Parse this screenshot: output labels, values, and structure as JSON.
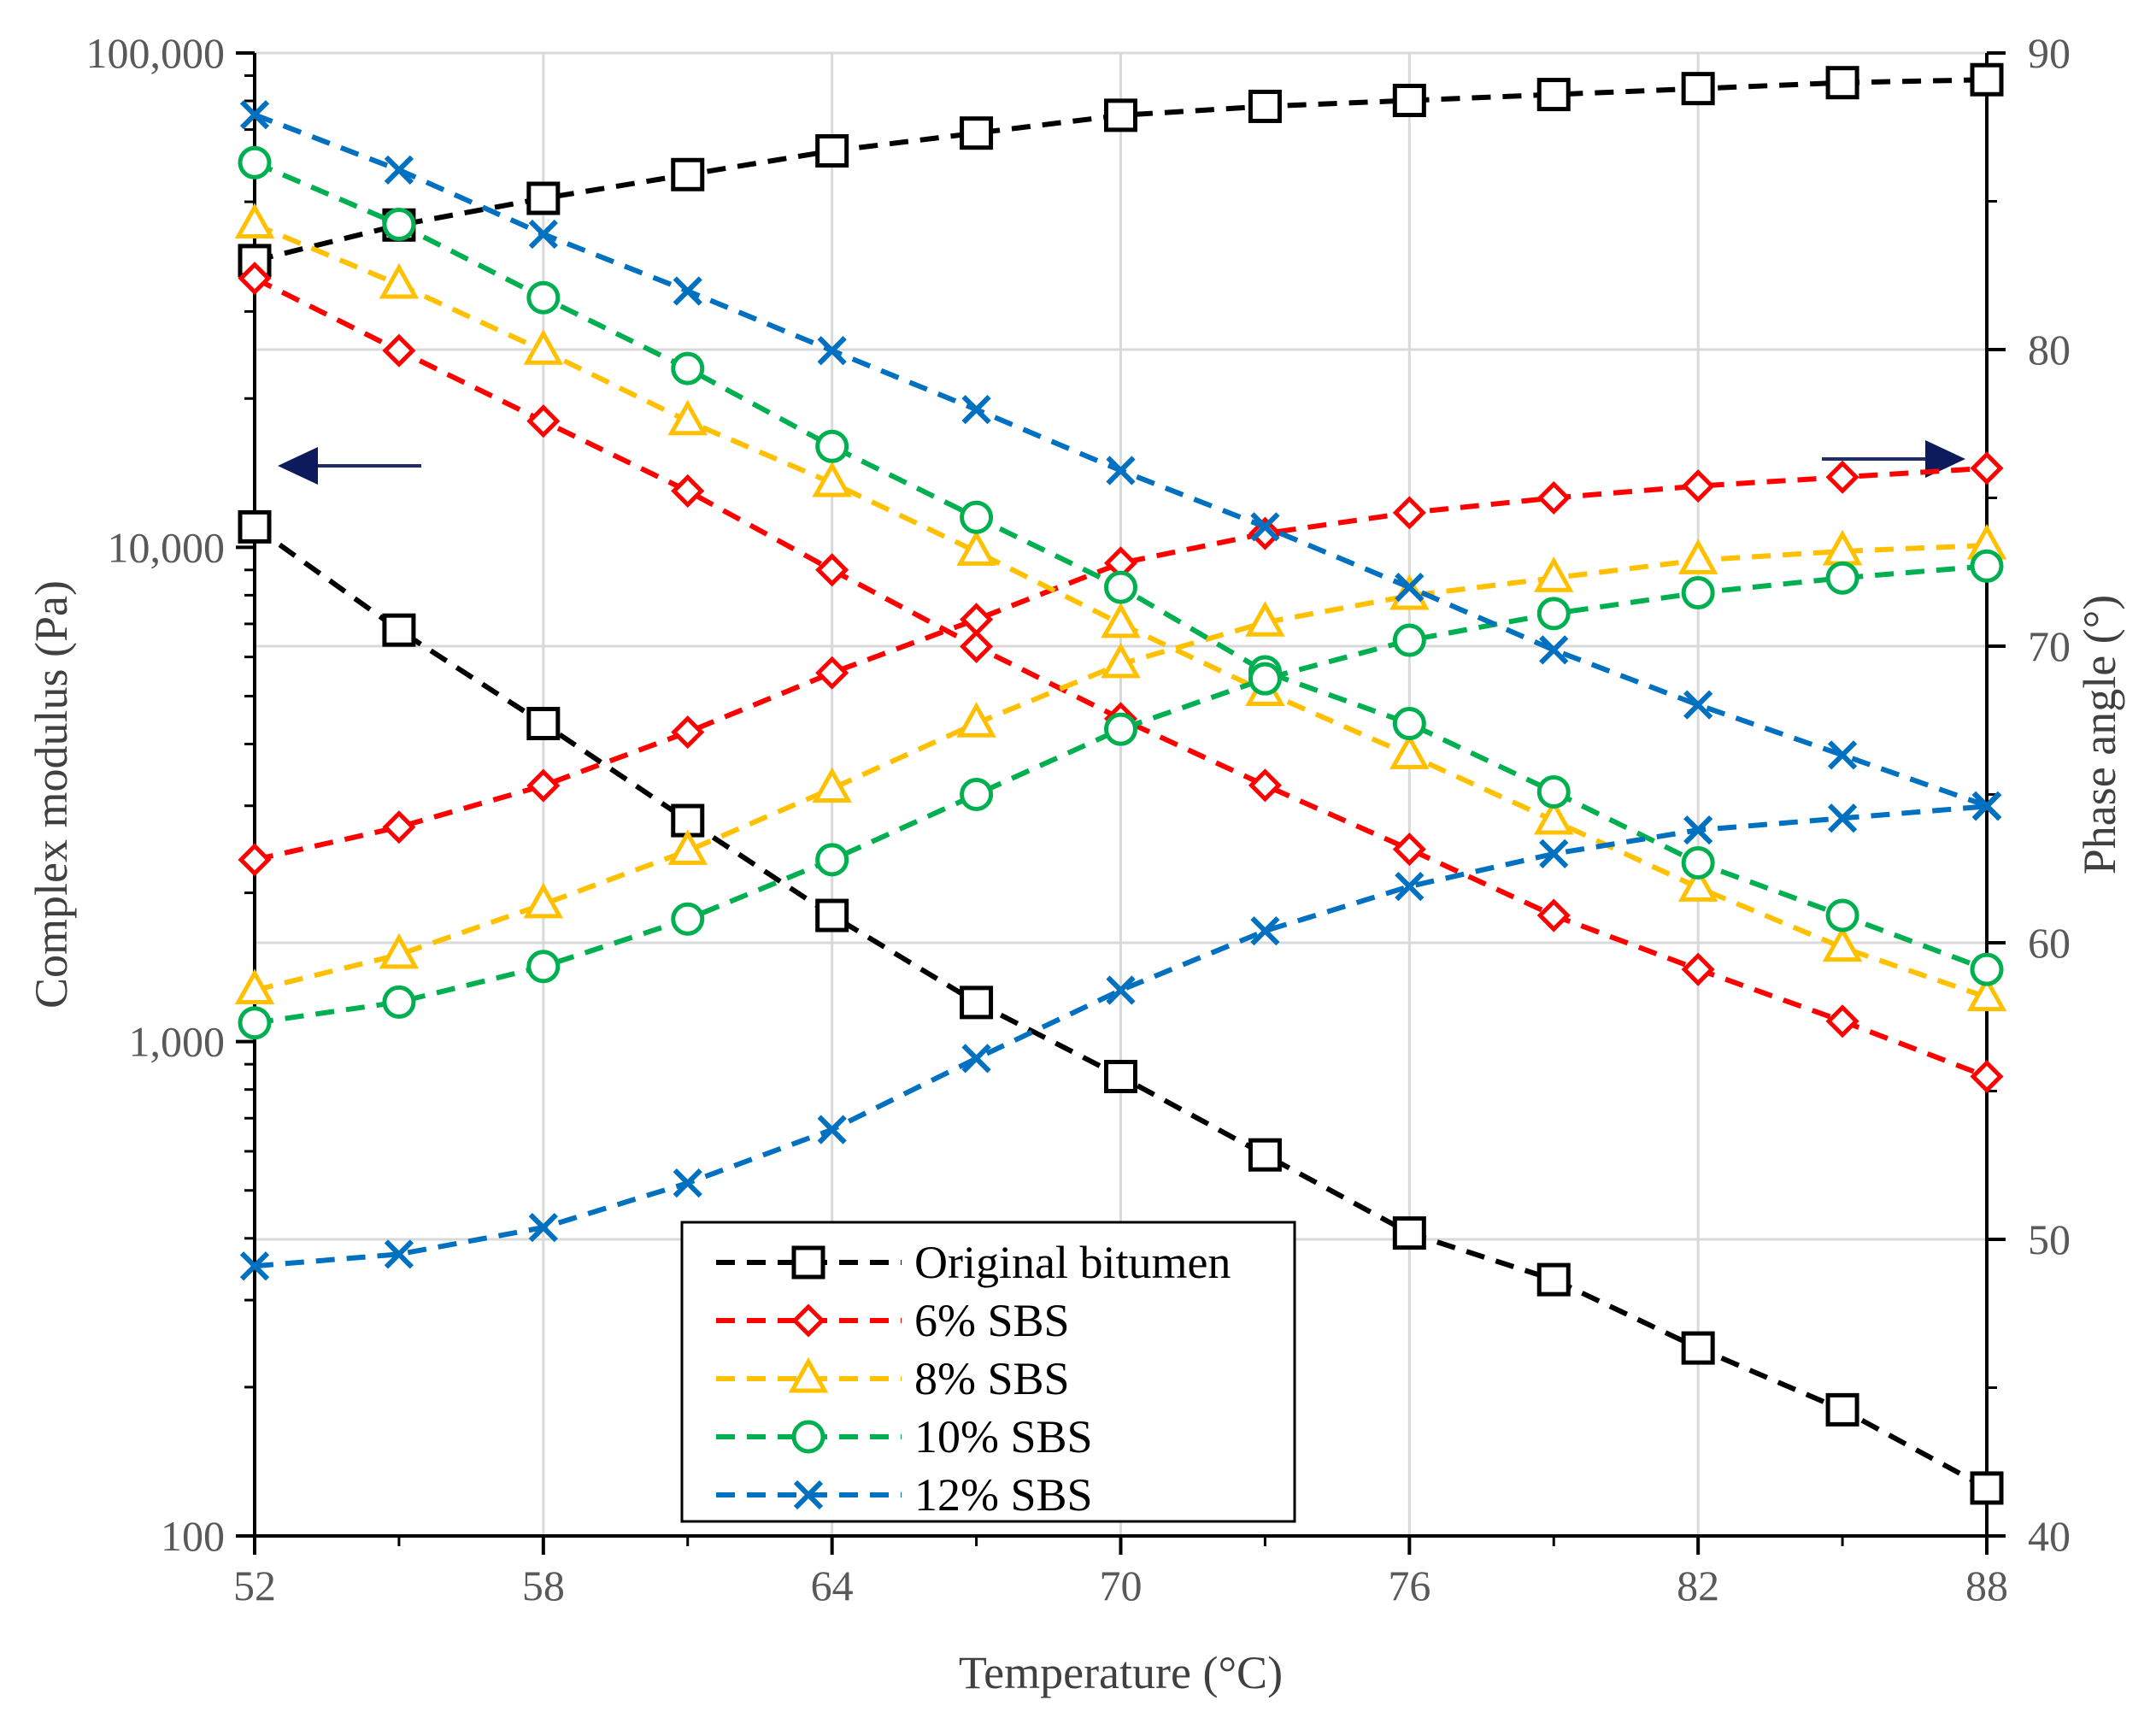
{
  "chart_data": {
    "type": "line",
    "xlabel": "Temperature (°C)",
    "ylabel_left": "Complex modulus (Pa)",
    "ylabel_right": "Phase angle (°)",
    "x": [
      52,
      55,
      58,
      61,
      64,
      67,
      70,
      73,
      76,
      79,
      82,
      85,
      88
    ],
    "x_ticks": [
      52,
      58,
      64,
      70,
      76,
      82,
      88
    ],
    "x_tick_labels": [
      "52",
      "58",
      "64",
      "70",
      "76",
      "82",
      "88"
    ],
    "xlim": [
      52,
      88
    ],
    "ylim_left": [
      100,
      100000
    ],
    "y_scale_left": "log",
    "y_ticks_left": [
      100,
      1000,
      10000,
      100000
    ],
    "y_tick_labels_left": [
      "100",
      "1,000",
      "10,000",
      "100,000"
    ],
    "ylim_right": [
      40,
      90
    ],
    "y_ticks_right": [
      40,
      50,
      60,
      70,
      80,
      90
    ],
    "y_tick_labels_right": [
      "40",
      "50",
      "60",
      "70",
      "80",
      "90"
    ],
    "arrows": [
      {
        "direction": "left",
        "meaning": "complex modulus curves use left axis"
      },
      {
        "direction": "right",
        "meaning": "phase angle curves use right axis"
      }
    ],
    "legend": {
      "position": "bottom-center"
    },
    "series": [
      {
        "name": "Original bitumen",
        "color": "#000000",
        "marker": "square",
        "modulus": [
          11000,
          6800,
          4400,
          2800,
          1800,
          1200,
          850,
          590,
          410,
          330,
          240,
          180,
          125
        ],
        "phase_angle": [
          83.0,
          84.2,
          85.1,
          85.9,
          86.7,
          87.3,
          87.9,
          88.2,
          88.4,
          88.6,
          88.8,
          89.0,
          89.1
        ]
      },
      {
        "name": "6% SBS",
        "color": "#ff0000",
        "marker": "diamond",
        "modulus": [
          35000,
          25000,
          18000,
          13000,
          9000,
          6300,
          4500,
          3300,
          2450,
          1800,
          1400,
          1100,
          850
        ],
        "phase_angle": [
          62.8,
          63.9,
          65.3,
          67.1,
          69.1,
          70.9,
          72.8,
          73.8,
          74.5,
          75.0,
          75.4,
          75.7,
          76.0
        ]
      },
      {
        "name": "8% SBS",
        "color": "#ffc000",
        "marker": "triangle",
        "modulus": [
          45000,
          34000,
          25000,
          18000,
          13500,
          9800,
          7000,
          5100,
          3800,
          2800,
          2050,
          1550,
          1230
        ],
        "phase_angle": [
          58.4,
          59.6,
          61.3,
          63.1,
          65.2,
          67.4,
          69.4,
          70.8,
          71.7,
          72.3,
          72.9,
          73.2,
          73.4
        ]
      },
      {
        "name": "10% SBS",
        "color": "#00b050",
        "marker": "circle",
        "modulus": [
          60000,
          45000,
          32000,
          23000,
          16000,
          11500,
          8300,
          5600,
          4400,
          3200,
          2300,
          1800,
          1400
        ],
        "phase_angle": [
          57.3,
          58.0,
          59.2,
          60.8,
          62.8,
          65.0,
          67.2,
          68.9,
          70.2,
          71.1,
          71.8,
          72.3,
          72.7
        ]
      },
      {
        "name": "12% SBS",
        "color": "#0070c0",
        "marker": "x",
        "modulus": [
          75000,
          58000,
          43000,
          33000,
          25000,
          19000,
          14300,
          11000,
          8300,
          6200,
          4800,
          3800,
          3000
        ],
        "phase_angle": [
          49.1,
          49.5,
          50.4,
          51.9,
          53.7,
          56.1,
          58.4,
          60.4,
          61.9,
          63.0,
          63.8,
          64.2,
          64.6
        ]
      }
    ]
  }
}
